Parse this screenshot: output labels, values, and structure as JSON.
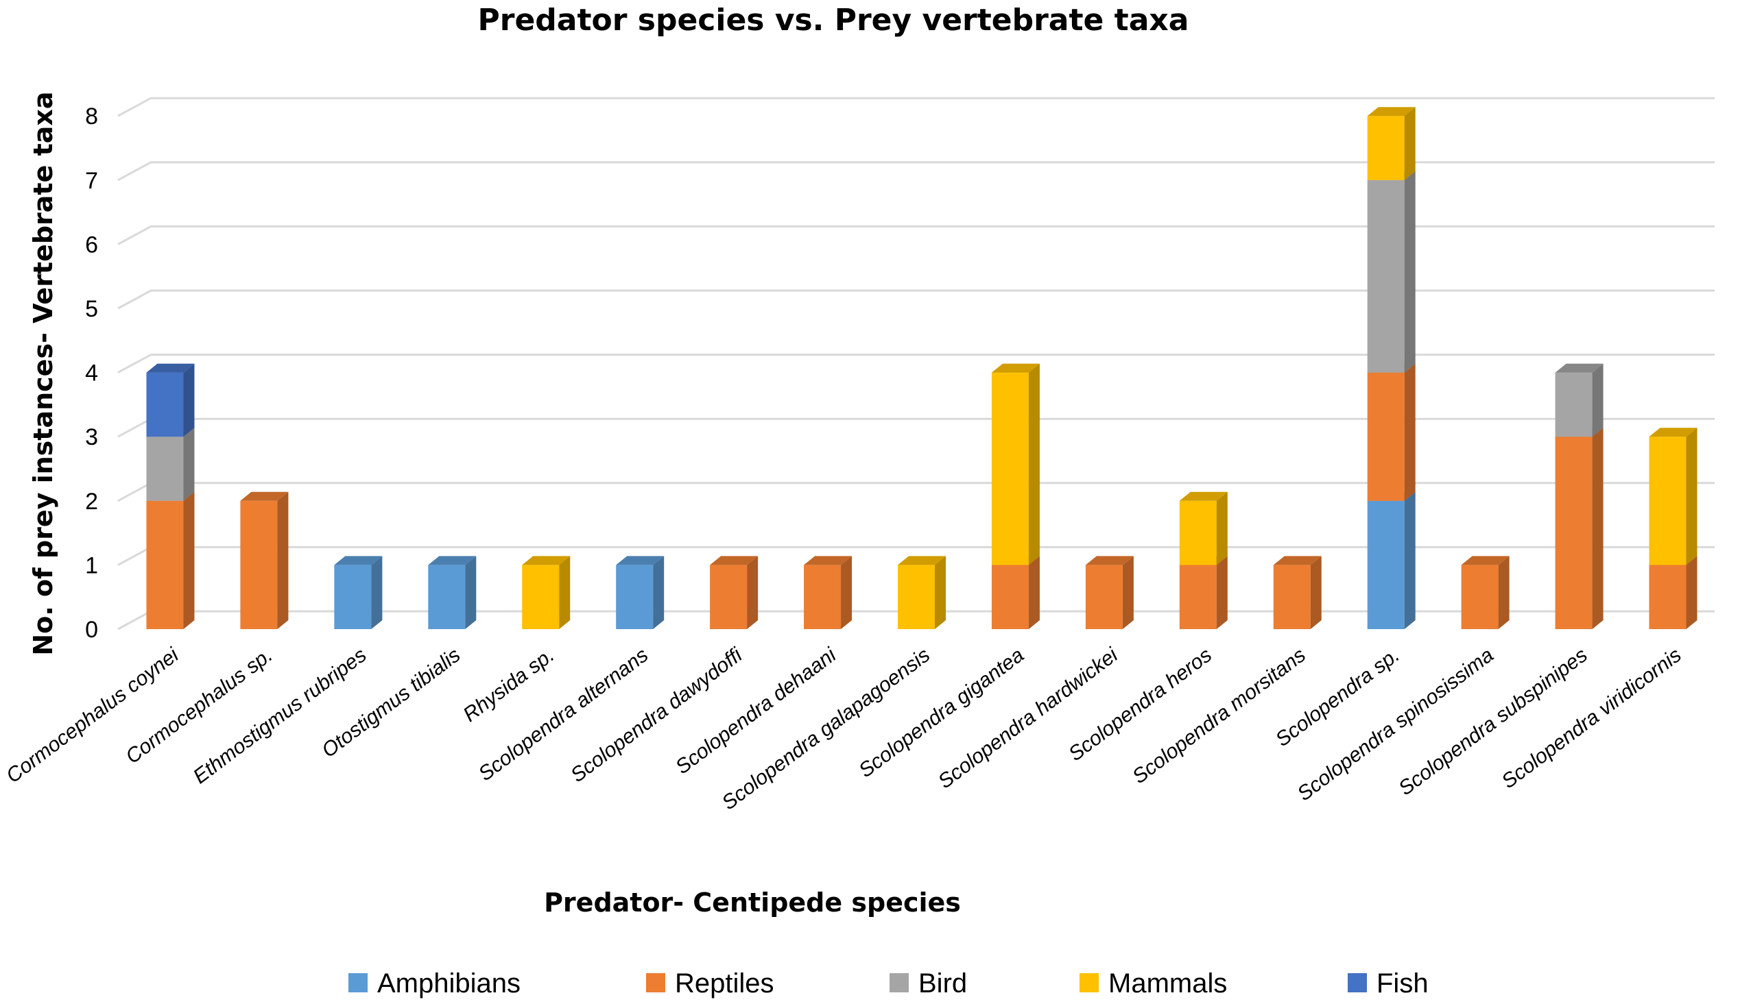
{
  "chart_data": {
    "type": "bar",
    "stacked": true,
    "title": "Predator species vs. Prey vertebrate taxa",
    "xlabel": "Predator- Centipede species",
    "ylabel": "No. of prey instances- Vertebrate taxa",
    "ylim": [
      0,
      8
    ],
    "yticks": [
      "0",
      "1",
      "2",
      "3",
      "4",
      "5",
      "6",
      "7",
      "8"
    ],
    "grid": true,
    "legend_position": "bottom",
    "categories": [
      "Cormocephalus coynei",
      "Cormocephalus sp.",
      "Ethmostigmus rubripes",
      "Otostigmus tibialis",
      "Rhysida sp.",
      "Scolopendra alternans",
      "Scolopendra dawydoffi",
      "Scolopendra dehaani",
      "Scolopendra galapagoensis",
      "Scolopendra gigantea",
      "Scolopendra hardwickei",
      "Scolopendra heros",
      "Scolopendra morsitans",
      "Scolopendra sp.",
      "Scolopendra spinosissima",
      "Scolopendra subspinipes",
      "Scolopendra viridicornis"
    ],
    "series": [
      {
        "name": "Amphibians",
        "color": "#5B9BD5",
        "values": [
          0,
          0,
          1,
          1,
          0,
          1,
          0,
          0,
          0,
          0,
          0,
          0,
          0,
          2,
          0,
          0,
          0
        ]
      },
      {
        "name": "Reptiles",
        "color": "#ED7D31",
        "values": [
          2,
          2,
          0,
          0,
          0,
          0,
          1,
          1,
          0,
          1,
          1,
          1,
          1,
          2,
          1,
          3,
          1
        ]
      },
      {
        "name": "Bird",
        "color": "#A5A5A5",
        "values": [
          1,
          0,
          0,
          0,
          0,
          0,
          0,
          0,
          0,
          0,
          0,
          0,
          0,
          3,
          0,
          1,
          0
        ]
      },
      {
        "name": "Mammals",
        "color": "#FFC000",
        "values": [
          0,
          0,
          0,
          0,
          1,
          0,
          0,
          0,
          1,
          3,
          0,
          1,
          0,
          1,
          0,
          0,
          2
        ]
      },
      {
        "name": "Fish",
        "color": "#4472C4",
        "values": [
          1,
          0,
          0,
          0,
          0,
          0,
          0,
          0,
          0,
          0,
          0,
          0,
          0,
          0,
          0,
          0,
          0
        ]
      }
    ]
  }
}
